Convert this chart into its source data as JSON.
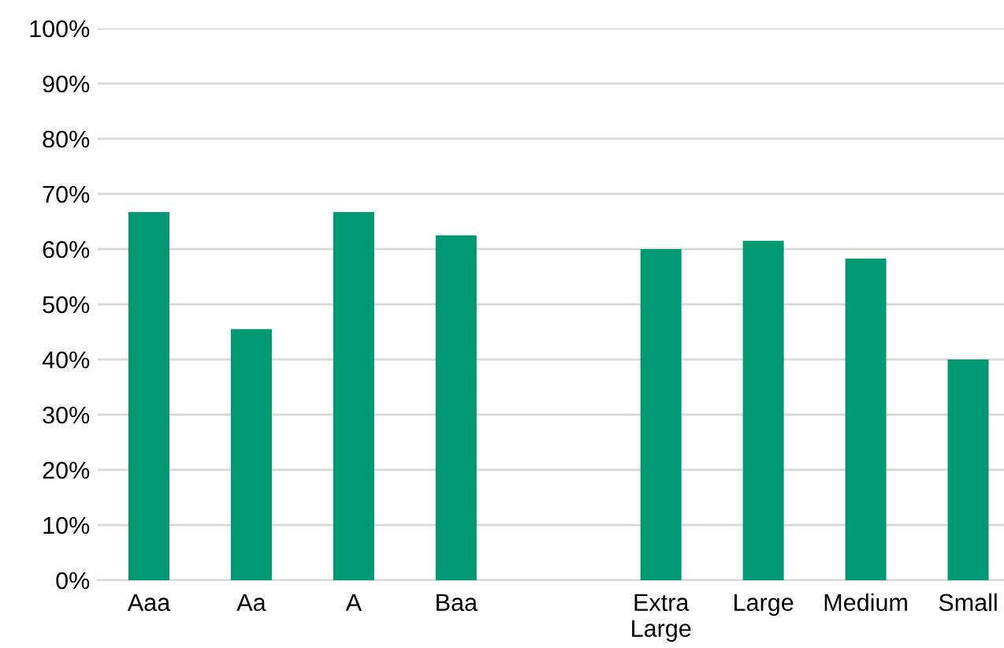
{
  "chart_data": {
    "type": "bar",
    "categories": [
      "Aaa",
      "Aa",
      "A",
      "Baa",
      null,
      "Extra\nLarge",
      "Large",
      "Medium",
      "Small"
    ],
    "values": [
      66.7,
      45.5,
      66.7,
      62.5,
      null,
      60,
      61.5,
      58.3,
      40
    ],
    "color": "#009873",
    "ylim": [
      0,
      100
    ],
    "yticks": [
      {
        "value": 0,
        "label": "0%"
      },
      {
        "value": 10,
        "label": "10%"
      },
      {
        "value": 20,
        "label": "20%"
      },
      {
        "value": 30,
        "label": "30%"
      },
      {
        "value": 40,
        "label": "40%"
      },
      {
        "value": 50,
        "label": "50%"
      },
      {
        "value": 60,
        "label": "60%"
      },
      {
        "value": 70,
        "label": "70%"
      },
      {
        "value": 80,
        "label": "80%"
      },
      {
        "value": 90,
        "label": "90%"
      },
      {
        "value": 100,
        "label": "100%"
      }
    ],
    "grid": "y",
    "legend": false
  }
}
